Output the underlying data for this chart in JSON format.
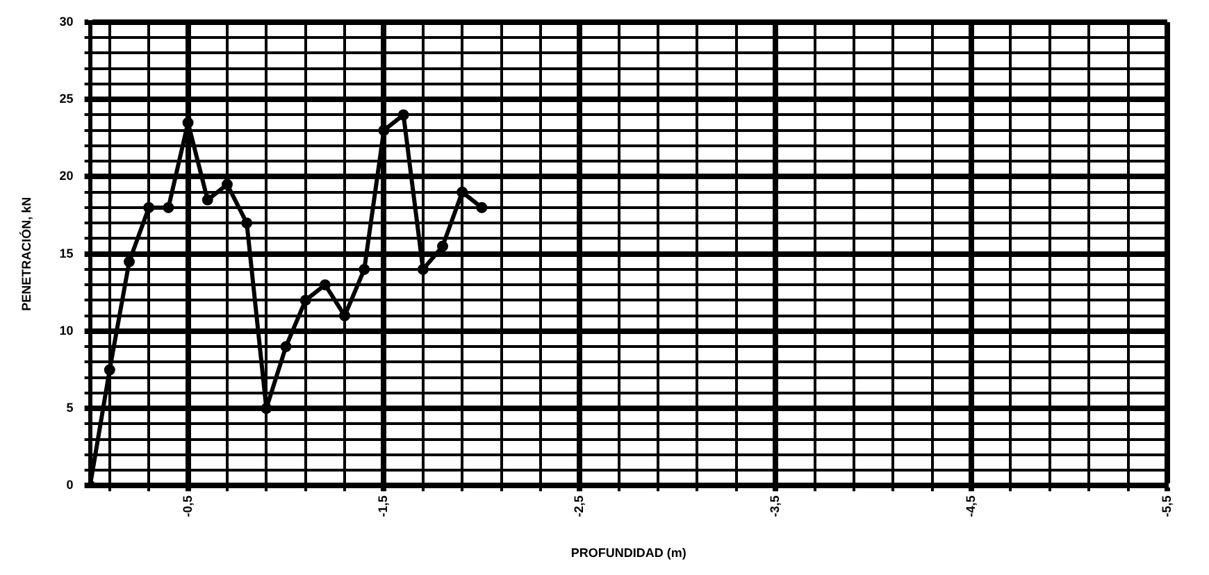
{
  "chart_data": {
    "type": "line",
    "xlabel": "PROFUNDIDAD (m)",
    "ylabel": "PENETRACIÓN, kN",
    "x": [
      0,
      -0.1,
      -0.2,
      -0.3,
      -0.4,
      -0.5,
      -0.6,
      -0.7,
      -0.8,
      -0.9,
      -1.0,
      -1.1,
      -1.2,
      -1.3,
      -1.4,
      -1.5,
      -1.6,
      -1.7,
      -1.8,
      -1.9,
      -2.0
    ],
    "series": [
      {
        "color": "#000000",
        "values": [
          0,
          7.5,
          14.5,
          18,
          18,
          23.5,
          18.5,
          19.5,
          17,
          5,
          9,
          12,
          13,
          11,
          14,
          23,
          24,
          14,
          15.5,
          19,
          18
        ]
      }
    ],
    "xlim": [
      0,
      -5.5
    ],
    "xticks": [
      {
        "value": -0.1,
        "label": null
      },
      {
        "value": -0.3,
        "label": null
      },
      {
        "value": -0.5,
        "label": "-0,5"
      },
      {
        "value": -0.7,
        "label": null
      },
      {
        "value": -0.9,
        "label": null
      },
      {
        "value": -1.1,
        "label": null
      },
      {
        "value": -1.3,
        "label": null
      },
      {
        "value": -1.5,
        "label": "-1,5"
      },
      {
        "value": -1.7,
        "label": null
      },
      {
        "value": -1.9,
        "label": null
      },
      {
        "value": -2.1,
        "label": null
      },
      {
        "value": -2.3,
        "label": null
      },
      {
        "value": -2.5,
        "label": "-2,5"
      },
      {
        "value": -2.7,
        "label": null
      },
      {
        "value": -2.9,
        "label": null
      },
      {
        "value": -3.1,
        "label": null
      },
      {
        "value": -3.3,
        "label": null
      },
      {
        "value": -3.5,
        "label": "-3,5"
      },
      {
        "value": -3.7,
        "label": null
      },
      {
        "value": -3.9,
        "label": null
      },
      {
        "value": -4.1,
        "label": null
      },
      {
        "value": -4.3,
        "label": null
      },
      {
        "value": -4.5,
        "label": "-4,5"
      },
      {
        "value": -4.7,
        "label": null
      },
      {
        "value": -4.9,
        "label": null
      },
      {
        "value": -5.1,
        "label": null
      },
      {
        "value": -5.3,
        "label": null
      },
      {
        "value": -5.5,
        "label": "-5,5"
      }
    ],
    "ylim": [
      0,
      30
    ],
    "yticks": [
      0,
      {
        "value": 1,
        "label": null
      },
      {
        "value": 2,
        "label": null
      },
      {
        "value": 3,
        "label": null
      },
      {
        "value": 4,
        "label": null
      },
      5,
      {
        "value": 6,
        "label": null
      },
      {
        "value": 7,
        "label": null
      },
      {
        "value": 8,
        "label": null
      },
      {
        "value": 9,
        "label": null
      },
      10,
      {
        "value": 11,
        "label": null
      },
      {
        "value": 12,
        "label": null
      },
      {
        "value": 13,
        "label": null
      },
      {
        "value": 14,
        "label": null
      },
      15,
      {
        "value": 16,
        "label": null
      },
      {
        "value": 17,
        "label": null
      },
      {
        "value": 18,
        "label": null
      },
      {
        "value": 19,
        "label": null
      },
      20,
      {
        "value": 21,
        "label": null
      },
      {
        "value": 22,
        "label": null
      },
      {
        "value": 23,
        "label": null
      },
      {
        "value": 24,
        "label": null
      },
      25,
      {
        "value": 26,
        "label": null
      },
      {
        "value": 27,
        "label": null
      },
      {
        "value": 28,
        "label": null
      },
      {
        "value": 29,
        "label": null
      },
      30
    ],
    "grid": true,
    "legend": false,
    "marker": "circle",
    "line_style": "solid"
  }
}
